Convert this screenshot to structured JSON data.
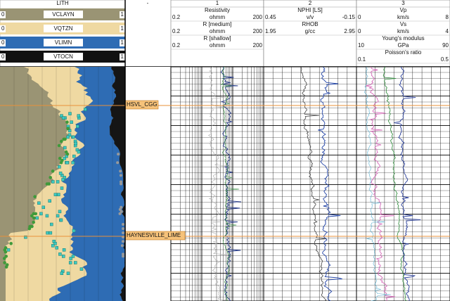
{
  "lith": {
    "title": "LITH",
    "curves": [
      {
        "name": "VCLAYN",
        "min": "0",
        "max": "1"
      },
      {
        "name": "VQTZN",
        "min": "0",
        "max": "1"
      },
      {
        "name": "VLIMN",
        "min": "0",
        "max": "1"
      },
      {
        "name": "VTOCN",
        "min": "0",
        "max": "1"
      }
    ]
  },
  "spacer_title": "-",
  "tracks": [
    {
      "number": "1",
      "curves": [
        {
          "name": "Resistivity",
          "min": "0.2",
          "unit": "ohmm",
          "max": "200"
        },
        {
          "name": "R [medium]",
          "min": "0.2",
          "unit": "ohmm",
          "max": "200"
        },
        {
          "name": "R [shallow]",
          "min": "0.2",
          "unit": "ohmm",
          "max": "200"
        }
      ]
    },
    {
      "number": "2",
      "curves": [
        {
          "name": "NPHI [LS]",
          "min": "0.45",
          "unit": "v/v",
          "max": "-0.15"
        },
        {
          "name": "RHOB",
          "min": "1.95",
          "unit": "g/cc",
          "max": "2.95"
        }
      ]
    },
    {
      "number": "3",
      "curves": [
        {
          "name": "Vp",
          "min": "0",
          "unit": "km/s",
          "max": "8"
        },
        {
          "name": "Vs",
          "min": "0",
          "unit": "km/s",
          "max": "4"
        },
        {
          "name": "Young's modulus",
          "min": "10",
          "unit": "GPa",
          "max": "90"
        },
        {
          "name": "Poisson's ratio",
          "min": "0.1",
          "unit": "",
          "max": "0.5"
        }
      ]
    }
  ],
  "markers": [
    {
      "label": "HSVL_CGG"
    },
    {
      "label": "HAYNESVILLE_LIME"
    }
  ]
}
